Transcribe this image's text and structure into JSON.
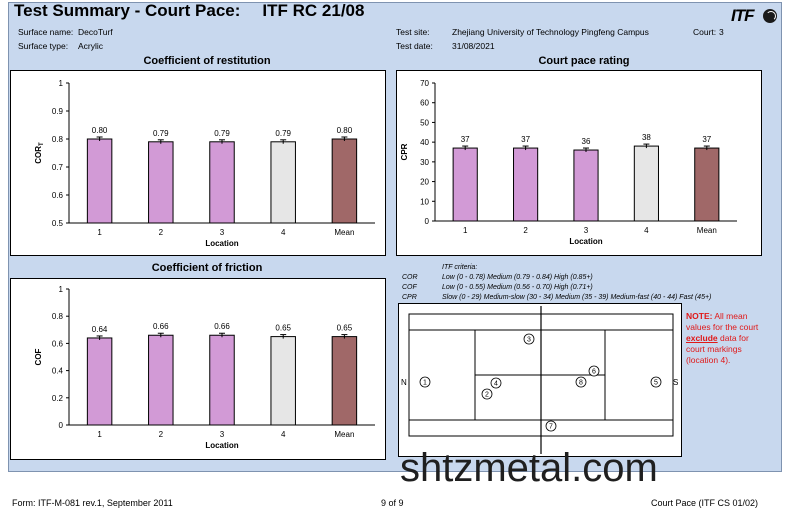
{
  "header": {
    "title": "Test Summary - Court Pace:",
    "code": "ITF RC 21/08",
    "logo": "ITF",
    "surface_name_label": "Surface name:",
    "surface_name": "DecoTurf",
    "surface_type_label": "Surface type:",
    "surface_type": "Acrylic",
    "test_site_label": "Test site:",
    "test_site": "Zhejiang University of Technology Pingfeng Campus",
    "court_label": "Court:",
    "court": "3",
    "test_date_label": "Test date:",
    "test_date": "31/08/2021"
  },
  "colors": {
    "purple": "#d29ad6",
    "grey": "#e6e6e6",
    "brown": "#a06868",
    "panel": "#c8d8ee"
  },
  "chart_data": [
    {
      "id": "cor",
      "type": "bar",
      "title": "Coefficient of restitution",
      "xlabel": "Location",
      "ylabel": "COR",
      "ylabel_sub": "T",
      "categories": [
        "1",
        "2",
        "3",
        "4",
        "Mean"
      ],
      "values": [
        0.8,
        0.79,
        0.79,
        0.79,
        0.8
      ],
      "labels": [
        "0.80",
        "0.79",
        "0.79",
        "0.79",
        "0.80"
      ],
      "bar_colors": [
        "purple",
        "purple",
        "purple",
        "grey",
        "brown"
      ],
      "ylim": [
        0.5,
        1.0
      ],
      "yticks": [
        "0.5",
        "0.6",
        "0.7",
        "0.8",
        "0.9",
        "1"
      ],
      "error_bars": true
    },
    {
      "id": "cpr",
      "type": "bar",
      "title": "Court pace rating",
      "xlabel": "Location",
      "ylabel": "CPR",
      "categories": [
        "1",
        "2",
        "3",
        "4",
        "Mean"
      ],
      "values": [
        37,
        37,
        36,
        38,
        37
      ],
      "labels": [
        "37",
        "37",
        "36",
        "38",
        "37"
      ],
      "bar_colors": [
        "purple",
        "purple",
        "purple",
        "grey",
        "brown"
      ],
      "ylim": [
        0,
        70
      ],
      "yticks": [
        "0",
        "10",
        "20",
        "30",
        "40",
        "50",
        "60",
        "70"
      ],
      "error_bars": true
    },
    {
      "id": "cof",
      "type": "bar",
      "title": "Coefficient of friction",
      "xlabel": "Location",
      "ylabel": "COF",
      "categories": [
        "1",
        "2",
        "3",
        "4",
        "Mean"
      ],
      "values": [
        0.64,
        0.66,
        0.66,
        0.65,
        0.65
      ],
      "labels": [
        "0.64",
        "0.66",
        "0.66",
        "0.65",
        "0.65"
      ],
      "bar_colors": [
        "purple",
        "purple",
        "purple",
        "grey",
        "brown"
      ],
      "ylim": [
        0,
        1
      ],
      "yticks": [
        "0",
        "0.2",
        "0.4",
        "0.6",
        "0.8",
        "1"
      ],
      "error_bars": true
    }
  ],
  "criteria": {
    "heading": "ITF criteria:",
    "rows": [
      {
        "key": "COR",
        "text": "Low (0 - 0.78)   Medium (0.79 - 0.84)   High (0.85+)"
      },
      {
        "key": "COF",
        "text": "Low (0 - 0.55)   Medium (0.56 - 0.70)   High (0.71+)"
      },
      {
        "key": "CPR",
        "text": "Slow (0 - 29)   Medium-slow (30 - 34)   Medium (35 - 39)   Medium-fast (40 - 44)   Fast (45+)"
      }
    ]
  },
  "court_map": {
    "north": "N",
    "south": "S",
    "markers": [
      "1",
      "2",
      "3",
      "4",
      "5",
      "6",
      "7",
      "8"
    ]
  },
  "note": {
    "lead": "NOTE:",
    "text1": "All mean values for the court",
    "emph": "exclude",
    "text2": "data for court markings (location 4)."
  },
  "footer": {
    "form": "Form: ITF-M-081 rev.1, September 2011",
    "page": "9 of 9",
    "doc": "Court Pace (ITF CS 01/02)"
  },
  "watermark": "shtzmetal.com"
}
